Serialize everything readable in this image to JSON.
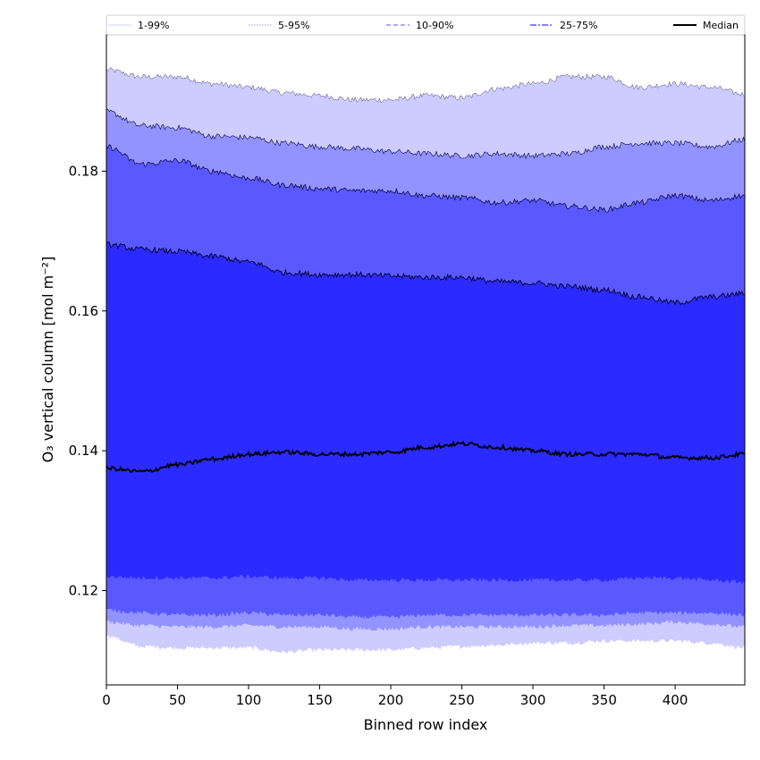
{
  "chart_data": {
    "type": "area",
    "xlabel": "Binned row index",
    "ylabel": "O₃ vertical column [mol m⁻²]",
    "xlim": [
      0,
      449
    ],
    "ylim": [
      0.1065,
      0.1995
    ],
    "xticks": [
      0,
      50,
      100,
      150,
      200,
      250,
      300,
      350,
      400
    ],
    "yticks": [
      0.12,
      0.14,
      0.16,
      0.18
    ],
    "ytick_labels": [
      "0.12",
      "0.14",
      "0.16",
      "0.18"
    ],
    "grid": false,
    "legend": {
      "placement": "top",
      "entries": [
        {
          "label": "1-99%",
          "style": "faint-solid"
        },
        {
          "label": "5-95%",
          "style": "dotted"
        },
        {
          "label": "10-90%",
          "style": "dashed"
        },
        {
          "label": "25-75%",
          "style": "dash-dot"
        },
        {
          "label": "Median",
          "style": "solid-thick"
        }
      ]
    },
    "colors": {
      "band_1_99": "#ccccff",
      "band_5_95": "#9393ff",
      "band_10_90": "#5959ff",
      "band_25_75": "#2b2bff",
      "median": "#000000"
    },
    "x": [
      0,
      25,
      50,
      75,
      100,
      125,
      150,
      175,
      200,
      225,
      250,
      275,
      300,
      325,
      350,
      375,
      400,
      425,
      449
    ],
    "series": [
      {
        "name": "1-99%",
        "upper": [
          0.1945,
          0.1935,
          0.1935,
          0.1925,
          0.192,
          0.1912,
          0.1908,
          0.1902,
          0.1902,
          0.1908,
          0.1905,
          0.1918,
          0.1925,
          0.1935,
          0.1935,
          0.192,
          0.1925,
          0.192,
          0.191
        ],
        "lower": [
          0.1135,
          0.112,
          0.1118,
          0.1118,
          0.1118,
          0.1112,
          0.1115,
          0.1115,
          0.1115,
          0.1118,
          0.112,
          0.1122,
          0.1125,
          0.1125,
          0.1128,
          0.1128,
          0.1128,
          0.1125,
          0.1118
        ]
      },
      {
        "name": "5-95%",
        "upper": [
          0.1885,
          0.1865,
          0.1862,
          0.185,
          0.1848,
          0.184,
          0.1835,
          0.1832,
          0.1828,
          0.1825,
          0.1822,
          0.1825,
          0.1822,
          0.1825,
          0.1835,
          0.184,
          0.184,
          0.1835,
          0.1845
        ],
        "lower": [
          0.1155,
          0.115,
          0.1148,
          0.1148,
          0.115,
          0.1148,
          0.1148,
          0.1145,
          0.1145,
          0.1148,
          0.1148,
          0.1148,
          0.1148,
          0.115,
          0.115,
          0.1152,
          0.1155,
          0.1152,
          0.1148
        ]
      },
      {
        "name": "10-90%",
        "upper": [
          0.1835,
          0.181,
          0.1815,
          0.18,
          0.179,
          0.178,
          0.1775,
          0.1772,
          0.1772,
          0.1765,
          0.1762,
          0.1755,
          0.1758,
          0.175,
          0.1745,
          0.1755,
          0.1765,
          0.1758,
          0.1765
        ],
        "lower": [
          0.1172,
          0.1168,
          0.1165,
          0.1165,
          0.1168,
          0.1165,
          0.1165,
          0.1162,
          0.1162,
          0.1165,
          0.1165,
          0.1165,
          0.1165,
          0.1165,
          0.1165,
          0.1168,
          0.1168,
          0.1168,
          0.1165
        ]
      },
      {
        "name": "25-75%",
        "upper": [
          0.1695,
          0.1688,
          0.1685,
          0.1678,
          0.167,
          0.1655,
          0.1652,
          0.1652,
          0.165,
          0.1648,
          0.1648,
          0.1642,
          0.164,
          0.1635,
          0.163,
          0.162,
          0.1612,
          0.162,
          0.1625
        ],
        "lower": [
          0.122,
          0.1218,
          0.1218,
          0.1218,
          0.122,
          0.1218,
          0.1218,
          0.1215,
          0.1215,
          0.1215,
          0.1215,
          0.1215,
          0.1215,
          0.1215,
          0.1215,
          0.1218,
          0.1218,
          0.1215,
          0.1212
        ]
      },
      {
        "name": "Median",
        "values": [
          0.1375,
          0.137,
          0.138,
          0.1388,
          0.1395,
          0.1398,
          0.1395,
          0.1395,
          0.1398,
          0.1405,
          0.141,
          0.1405,
          0.14,
          0.1395,
          0.1395,
          0.1395,
          0.139,
          0.139,
          0.1395
        ]
      }
    ]
  }
}
